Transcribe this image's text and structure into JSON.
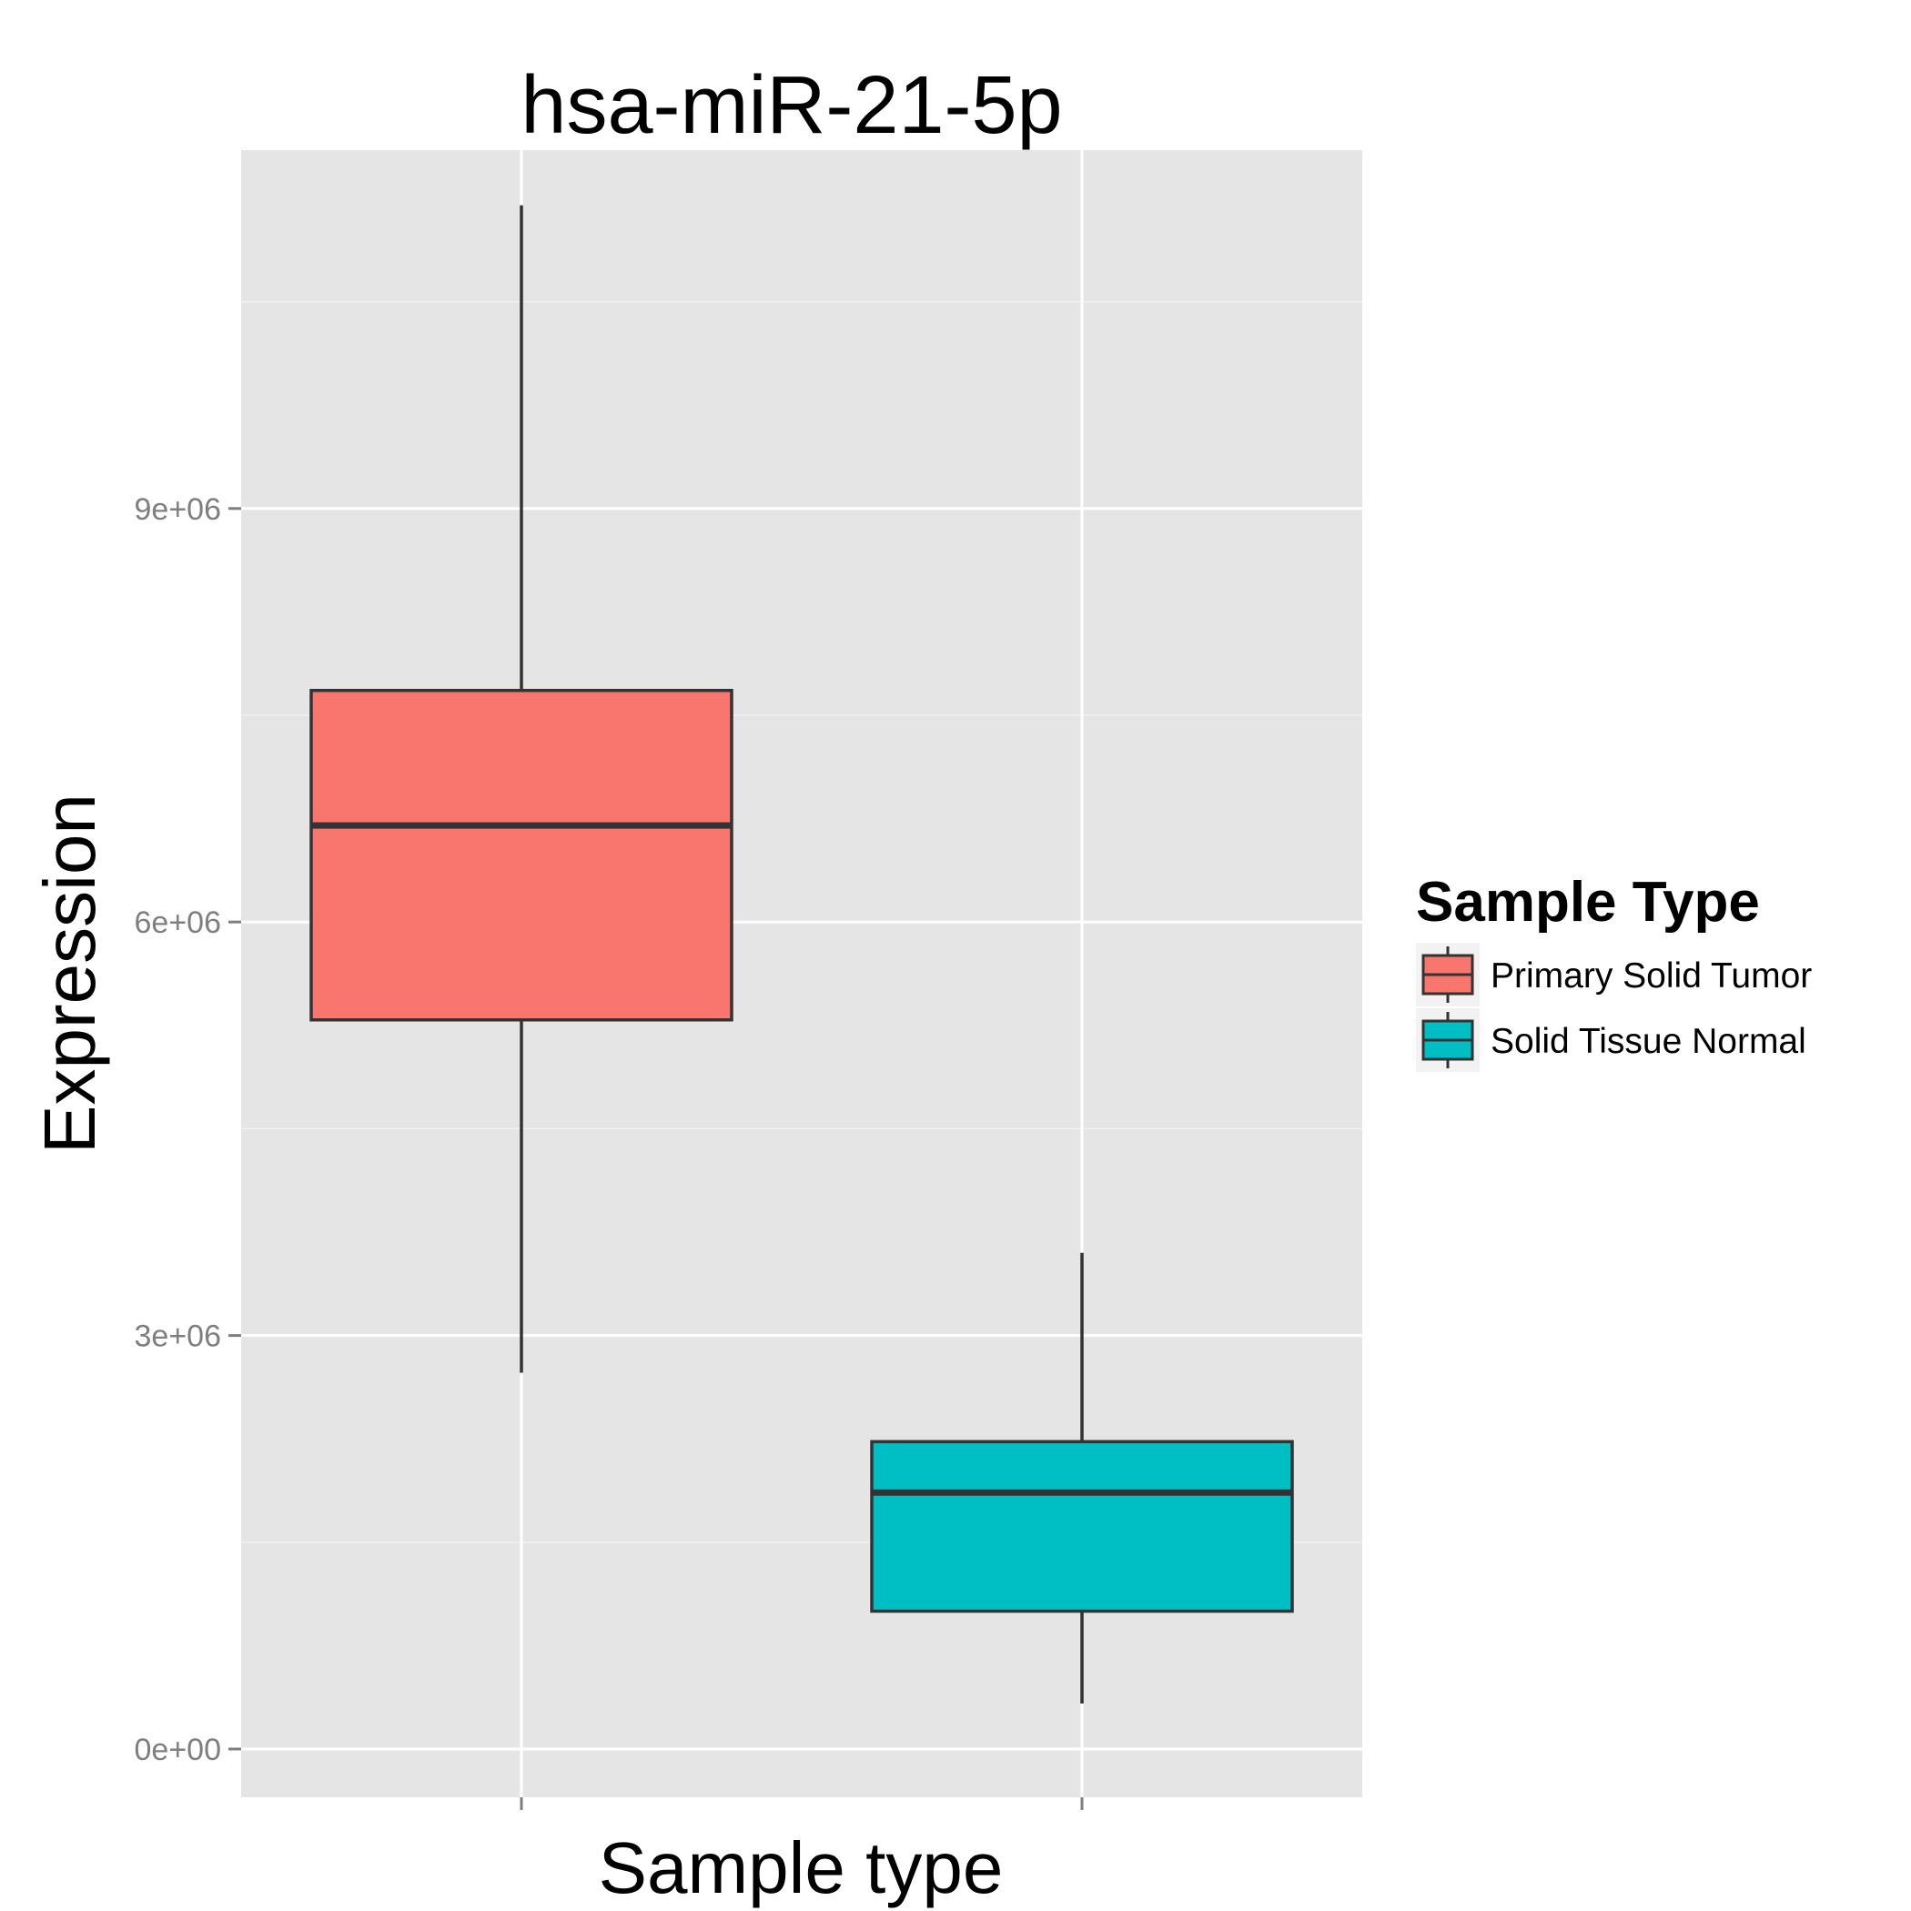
{
  "chart_data": {
    "type": "box",
    "title": "hsa-miR-21-5p",
    "xlabel": "Sample type",
    "ylabel": "Expression",
    "ylim": [
      -350000,
      11600000
    ],
    "yticks": [
      0,
      3000000,
      6000000,
      9000000
    ],
    "ytick_labels": [
      "0e+00",
      "3e+06",
      "6e+06",
      "9e+06"
    ],
    "grid": true,
    "legend_position": "right",
    "legend_title": "Sample Type",
    "series": [
      {
        "name": "Primary Solid Tumor",
        "color": "#F8766D",
        "whisker_low": 2730000,
        "q1": 5290000,
        "median": 6700000,
        "q3": 7680000,
        "whisker_high": 11200000
      },
      {
        "name": "Solid Tissue Normal",
        "color": "#00BFC4",
        "whisker_low": 330000,
        "q1": 1000000,
        "median": 1860000,
        "q3": 2230000,
        "whisker_high": 3600000
      }
    ]
  },
  "colors": {
    "panel_background": "#E5E5E5",
    "gridline": "#FFFFFF",
    "box_outline": "#333333",
    "tick_text": "#7F7F7F"
  }
}
